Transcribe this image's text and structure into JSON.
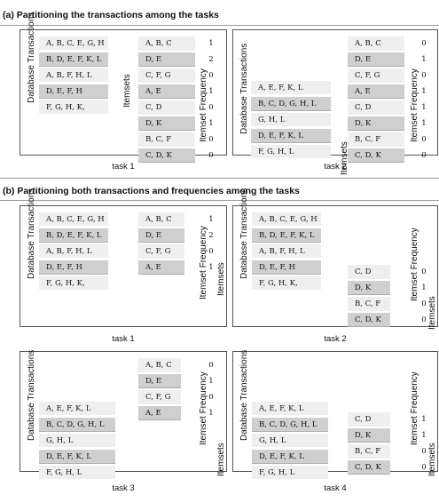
{
  "section_a": {
    "title": "(a) Partitioning the transactions among the tasks",
    "task1": {
      "caption": "task 1",
      "db_label": "Database Transactions",
      "itemsets_label": "Itemsets",
      "freq_label": "Itemset Frequency",
      "transactions": [
        "A, B, C, E, G, H",
        "B, D, E, F, K, L",
        "A, B, F, H, L",
        "D, E, F, H",
        "F, G, H, K,"
      ],
      "itemsets": [
        "A, B, C",
        "D, E",
        "C, F, G",
        "A, E",
        "C, D",
        "D, K",
        "B, C, F",
        "C, D, K"
      ],
      "frequencies": [
        "1",
        "2",
        "0",
        "1",
        "0",
        "1",
        "0",
        "0"
      ]
    },
    "task2": {
      "caption": "task 2",
      "db_label": "Database Transactions",
      "itemsets_label": "Itemsets",
      "freq_label": "Itemset Frequency",
      "transactions": [
        "A, E, F, K, L",
        "B, C, D, G, H, L",
        "G, H, L",
        "D, E, F, K, L",
        "F, G, H, L"
      ],
      "itemsets": [
        "A, B, C",
        "D, E",
        "C, F, G",
        "A, E",
        "C, D",
        "D, K",
        "B, C, F",
        "C, D, K"
      ],
      "frequencies": [
        "0",
        "1",
        "0",
        "1",
        "1",
        "1",
        "0",
        "0"
      ]
    }
  },
  "section_b": {
    "title": "(b) Partitioning both transactions and frequencies among the tasks",
    "task1": {
      "caption": "task 1",
      "db_label": "Database Transactions",
      "itemsets_label": "Itemsets",
      "freq_label": "Itemset Frequency",
      "transactions": [
        "A, B, C, E, G, H",
        "B, D, E, F, K, L",
        "A, B, F, H, L",
        "D, E, F, H",
        "F, G, H, K,"
      ],
      "itemsets": [
        "A, B, C",
        "D, E",
        "C, F, G",
        "A, E"
      ],
      "frequencies": [
        "1",
        "2",
        "0",
        "1"
      ]
    },
    "task2": {
      "caption": "task 2",
      "db_label": "Database Transactions",
      "itemsets_label": "Itemsets",
      "freq_label": "Itemset Frequency",
      "transactions": [
        "A, B, C, E, G, H",
        "B, D, E, F, K, L",
        "A, B, F, H, L",
        "D, E, F, H",
        "F, G, H, K,"
      ],
      "itemsets": [
        "C, D",
        "D, K",
        "B, C, F",
        "C, D, K"
      ],
      "frequencies": [
        "0",
        "1",
        "0",
        "0"
      ]
    },
    "task3": {
      "caption": "task 3",
      "db_label": "Database Transactions",
      "itemsets_label": "Itemsets",
      "freq_label": "Itemset Frequency",
      "transactions": [
        "A, E, F, K, L",
        "B, C, D, G, H, L",
        "G, H, L",
        "D, E, F, K, L",
        "F, G, H, L"
      ],
      "itemsets": [
        "A, B, C",
        "D, E",
        "C, F, G",
        "A, E"
      ],
      "frequencies": [
        "0",
        "1",
        "0",
        "1"
      ]
    },
    "task4": {
      "caption": "task 4",
      "db_label": "Database Transactions",
      "itemsets_label": "Itemsets",
      "freq_label": "Itemset Frequency",
      "transactions": [
        "A, E, F, K, L",
        "B, C, D, G, H, L",
        "G, H, L",
        "D, E, F, K, L",
        "F, G, H, L"
      ],
      "itemsets": [
        "C, D",
        "D, K",
        "B, C, F",
        "C, D, K"
      ],
      "frequencies": [
        "1",
        "1",
        "0",
        "0"
      ]
    }
  }
}
